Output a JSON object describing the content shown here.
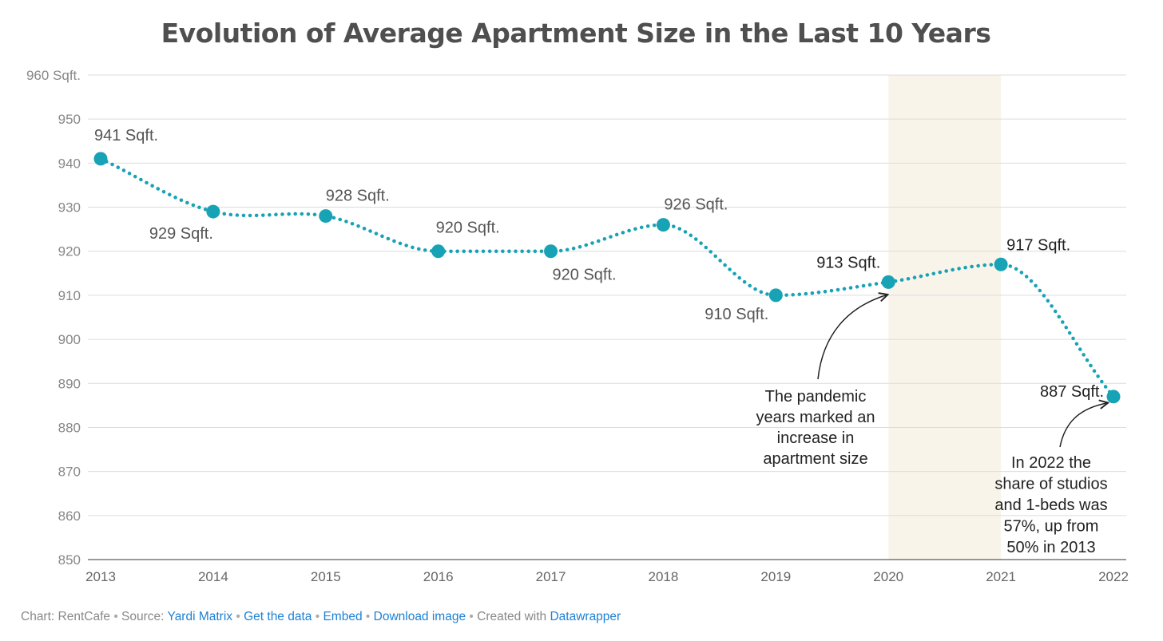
{
  "title": "Evolution of Average Apartment Size in the Last 10 Years",
  "chart_data": {
    "type": "line",
    "title": "Evolution of Average Apartment Size in the Last 10 Years",
    "xlabel": "",
    "ylabel": "",
    "x": [
      "2013",
      "2014",
      "2015",
      "2016",
      "2017",
      "2018",
      "2019",
      "2020",
      "2021",
      "2022"
    ],
    "series": [
      {
        "values": [
          941,
          929,
          928,
          920,
          920,
          926,
          910,
          913,
          917,
          887
        ]
      }
    ],
    "data_labels": [
      "941 Sqft.",
      "929 Sqft.",
      "928 Sqft.",
      "920 Sqft.",
      "920 Sqft.",
      "926 Sqft.",
      "910 Sqft.",
      "913 Sqft.",
      "917 Sqft.",
      "887 Sqft."
    ],
    "ylim": [
      850,
      960
    ],
    "y_ticks": [
      850,
      860,
      870,
      880,
      890,
      900,
      910,
      920,
      930,
      940,
      950,
      960
    ],
    "y_tick_labels": [
      "850",
      "860",
      "870",
      "880",
      "890",
      "900",
      "910",
      "920",
      "930",
      "940",
      "950",
      "960 Sqft."
    ],
    "grid": true,
    "line_style": "dotted",
    "highlight_range": [
      "2020",
      "2021"
    ],
    "annotations": [
      {
        "text": "The pandemic\nyears marked an\nincrease in\napartment size",
        "points_to": "2020"
      },
      {
        "text": "In 2022 the\nshare of studios\nand 1-beds was\n57%, up from\n50% in 2013",
        "points_to": "2022"
      }
    ],
    "colors": {
      "line": "#17a2b5",
      "highlight": "#f8f4ea",
      "grid": "#dcdcdc",
      "tick_text": "#888888",
      "label_text": "#555555"
    }
  },
  "footer": {
    "chart_by": "Chart: RentCafe",
    "source_prefix": "Source:",
    "source_link": "Yardi Matrix",
    "get_data": "Get the data",
    "embed": "Embed",
    "download": "Download image",
    "created_prefix": "Created with",
    "created_link": "Datawrapper"
  }
}
